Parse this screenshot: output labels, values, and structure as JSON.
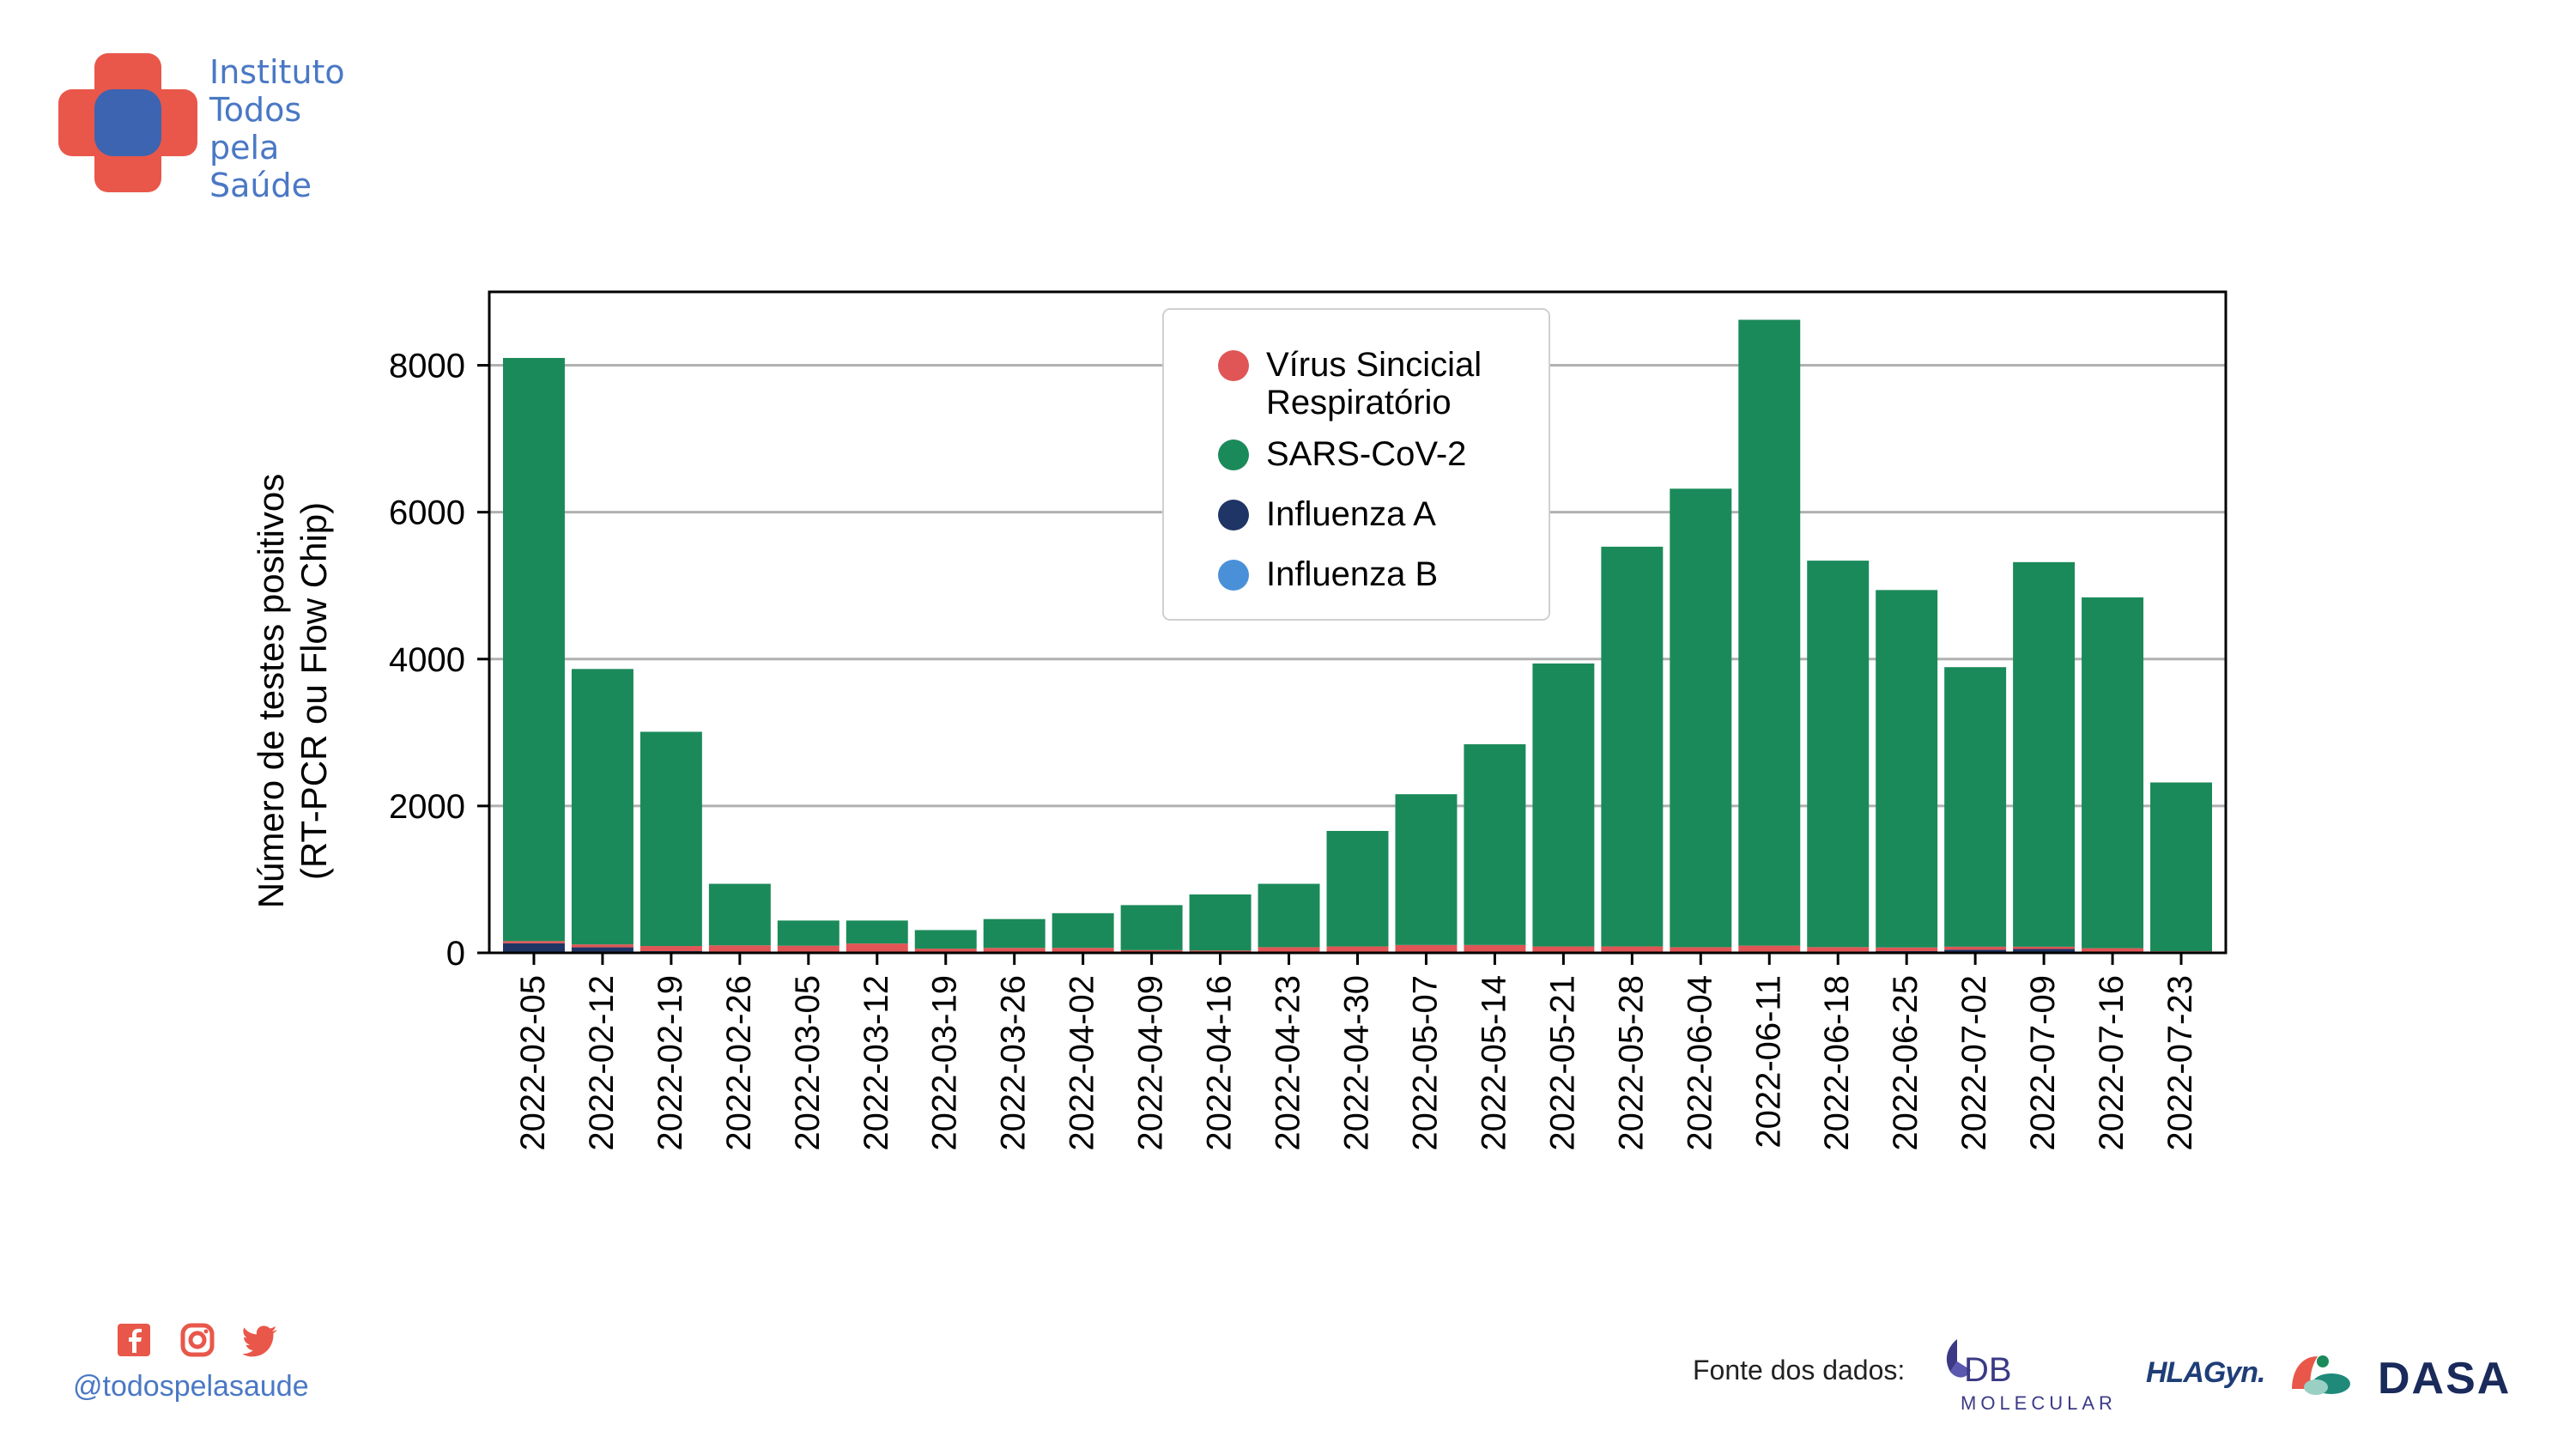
{
  "brand": {
    "name_lines": [
      "Instituto",
      "Todos",
      "pela",
      "Saúde"
    ],
    "colors": {
      "red": "#e9574a",
      "blue": "#3c64b1",
      "text": "#4a78c4"
    }
  },
  "footer": {
    "social_icons": [
      "facebook-icon",
      "instagram-icon",
      "twitter-icon"
    ],
    "handle": "@todospelasaude",
    "source_label": "Fonte dos dados:",
    "partner_logos": {
      "db_main": "DB",
      "db_sub": "MOLECULAR",
      "hla": "HLAGyn.",
      "dasa": "DASA"
    }
  },
  "chart_data": {
    "type": "bar",
    "stacked": true,
    "ylabel_lines": [
      "Número de testes positivos",
      "(RT-PCR ou Flow Chip)"
    ],
    "xlabel": "",
    "ylim": [
      0,
      9000
    ],
    "yticks": [
      0,
      2000,
      4000,
      6000,
      8000
    ],
    "grid": "horizontal",
    "legend_position": "top-center",
    "categories": [
      "2022-02-05",
      "2022-02-12",
      "2022-02-19",
      "2022-02-26",
      "2022-03-05",
      "2022-03-12",
      "2022-03-19",
      "2022-03-26",
      "2022-04-02",
      "2022-04-09",
      "2022-04-16",
      "2022-04-23",
      "2022-04-30",
      "2022-05-07",
      "2022-05-14",
      "2022-05-21",
      "2022-05-28",
      "2022-06-04",
      "2022-06-11",
      "2022-06-18",
      "2022-06-25",
      "2022-07-02",
      "2022-07-09",
      "2022-07-16",
      "2022-07-23"
    ],
    "series": [
      {
        "name": "Influenza B",
        "legend_lines": [
          "Influenza B"
        ],
        "color": "#4a90d9",
        "values": [
          10,
          5,
          3,
          2,
          2,
          2,
          2,
          2,
          2,
          2,
          2,
          2,
          2,
          2,
          2,
          2,
          2,
          2,
          3,
          3,
          3,
          3,
          3,
          3,
          2
        ]
      },
      {
        "name": "Influenza A",
        "legend_lines": [
          "Influenza A"
        ],
        "color": "#1f3566",
        "values": [
          120,
          70,
          20,
          10,
          5,
          5,
          5,
          5,
          5,
          5,
          5,
          5,
          5,
          5,
          5,
          5,
          5,
          5,
          15,
          15,
          20,
          40,
          50,
          10,
          5
        ]
      },
      {
        "name": "Vírus Sincicial Respiratório",
        "legend_lines": [
          "Vírus Sincicial",
          "Respiratório"
        ],
        "color": "#e05555",
        "values": [
          30,
          40,
          70,
          90,
          90,
          120,
          50,
          60,
          60,
          30,
          25,
          70,
          80,
          100,
          100,
          80,
          80,
          70,
          80,
          60,
          50,
          40,
          30,
          50,
          15
        ]
      },
      {
        "name": "SARS-CoV-2",
        "legend_lines": [
          "SARS-CoV-2"
        ],
        "color": "#1b8a5a",
        "values": [
          7940,
          3750,
          2917,
          838,
          343,
          313,
          253,
          393,
          473,
          613,
          763,
          863,
          1573,
          2053,
          2733,
          3853,
          5443,
          6243,
          8522,
          5262,
          4867,
          3807,
          5237,
          4777,
          2298
        ]
      }
    ],
    "legend_order": [
      "Vírus Sincicial Respiratório",
      "SARS-CoV-2",
      "Influenza A",
      "Influenza B"
    ]
  }
}
